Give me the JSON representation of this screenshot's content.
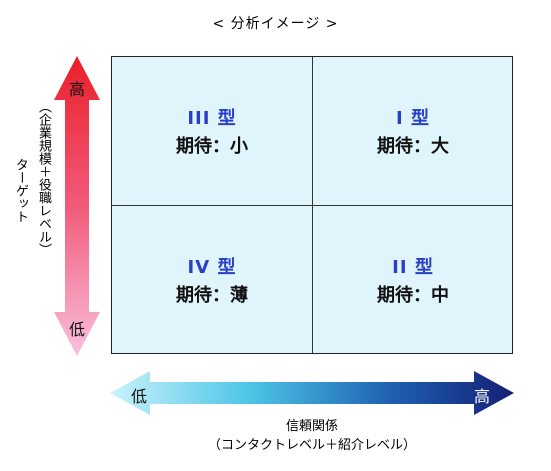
{
  "title": "< 分析イメージ >",
  "quadrants": {
    "top_left": {
      "type": "III 型",
      "expectation": "期待：小"
    },
    "top_right": {
      "type": "I 型",
      "expectation": "期待：大"
    },
    "bottom_left": {
      "type": "IV 型",
      "expectation": "期待：薄"
    },
    "bottom_right": {
      "type": "II 型",
      "expectation": "期待：中"
    }
  },
  "vertical_axis": {
    "high": "高",
    "low": "低",
    "label": "ターゲット",
    "sublabel": "（企業規模＋役職レベル）",
    "colors": {
      "top": "#e8202a",
      "bottom": "#f7b6d6"
    }
  },
  "horizontal_axis": {
    "high": "高",
    "low": "低",
    "label": "信頼関係",
    "sublabel": "（コンタクトレベル＋紹介レベル）",
    "colors": {
      "left": "#c9f3fb",
      "right": "#141f75"
    }
  }
}
